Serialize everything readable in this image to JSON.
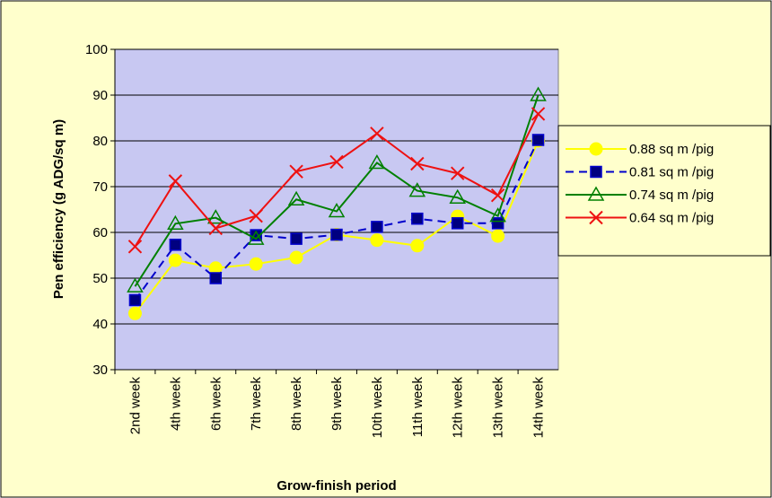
{
  "chart_data": {
    "type": "line",
    "x_label": "Grow-finish period",
    "y_label": "Pen efficiency (g ADG/sq m)",
    "categories": [
      "2nd week",
      "4th week",
      "6th week",
      "7th week",
      "8th week",
      "9th week",
      "10th week",
      "11th week",
      "12th week",
      "13th week",
      "14th week"
    ],
    "series": [
      {
        "name": "0.88 sq m /pig",
        "color": "#ffff00",
        "marker": "circle",
        "dash": false,
        "values": [
          42.3,
          53.9,
          52.2,
          53.1,
          54.5,
          59.5,
          58.3,
          57.1,
          63.5,
          59.2,
          80
        ]
      },
      {
        "name": "0.81 sq m /pig",
        "color": "#0000cc",
        "marker": "square",
        "dash": true,
        "values": [
          45.2,
          57.3,
          50.0,
          59.4,
          58.6,
          59.5,
          61.2,
          63.0,
          62.0,
          62.0,
          80.2
        ]
      },
      {
        "name": "0.74 sq m /pig",
        "color": "#008000",
        "marker": "triangle",
        "dash": false,
        "values": [
          48.2,
          61.9,
          63.2,
          58.6,
          67.2,
          64.6,
          75.2,
          69.1,
          67.6,
          63.6,
          90.0
        ]
      },
      {
        "name": "0.64 sq m /pig",
        "color": "#ee1111",
        "marker": "x",
        "dash": false,
        "values": [
          56.9,
          71.2,
          60.9,
          63.6,
          73.3,
          75.4,
          81.6,
          75.0,
          72.9,
          68.1,
          85.9
        ]
      }
    ],
    "ylim": [
      30,
      100
    ],
    "yticks": [
      30,
      40,
      50,
      60,
      70,
      80,
      90,
      100
    ],
    "grid": true
  }
}
